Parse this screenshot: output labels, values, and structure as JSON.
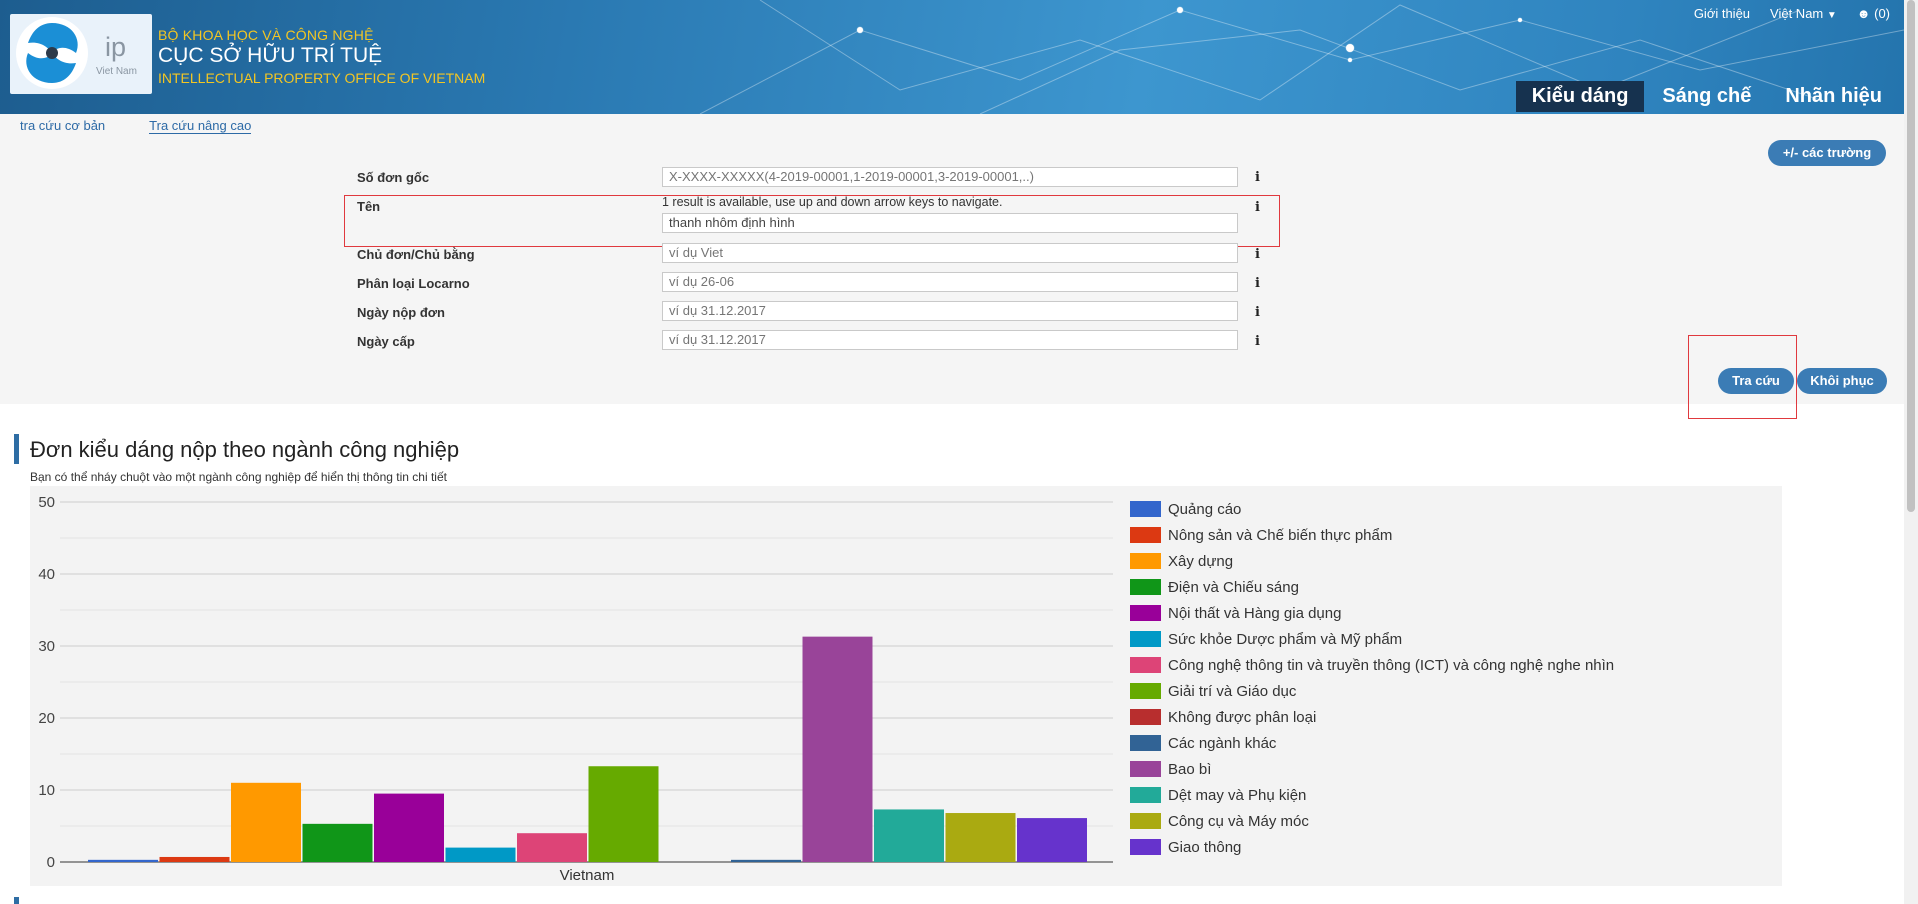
{
  "header": {
    "logo_text": "ip",
    "logo_sub": "Viet Nam",
    "org_line1": "BỘ KHOA HỌC VÀ CÔNG NGHỆ",
    "org_line2": "CỤC SỞ HỮU TRÍ TUỆ",
    "org_line3": "INTELLECTUAL PROPERTY OFFICE OF VIETNAM",
    "links": {
      "intro": "Giới thiệu",
      "language": "Việt Nam",
      "cart": "(0)"
    },
    "tabs": [
      {
        "label": "Kiểu dáng",
        "active": true
      },
      {
        "label": "Sáng chế",
        "active": false
      },
      {
        "label": "Nhãn hiệu",
        "active": false
      }
    ]
  },
  "search": {
    "subtabs": [
      "tra cứu cơ bản",
      "Tra cứu nâng cao"
    ],
    "fields_button": "+/- các trường",
    "hint": "1 result is available, use up and down arrow keys to navigate.",
    "fields": [
      {
        "label": "Số đơn gốc",
        "placeholder": "X-XXXX-XXXXX(4-2019-00001,1-2019-00001,3-2019-00001,..)",
        "value": ""
      },
      {
        "label": "Tên",
        "placeholder": "",
        "value": "thanh nhôm định hình"
      },
      {
        "label": "Chủ đơn/Chủ bằng",
        "placeholder": "ví dụ Viet",
        "value": ""
      },
      {
        "label": "Phân loại Locarno",
        "placeholder": "ví dụ 26-06",
        "value": ""
      },
      {
        "label": "Ngày nộp đơn",
        "placeholder": "ví dụ 31.12.2017",
        "value": ""
      },
      {
        "label": "Ngày cấp",
        "placeholder": "ví dụ 31.12.2017",
        "value": ""
      }
    ],
    "info_icon": "i",
    "search_button": "Tra cứu",
    "reset_button": "Khôi phục"
  },
  "section": {
    "title": "Đơn kiểu dáng nộp theo ngành công nghiệp",
    "subtitle": "Bạn có thể nháy chuột vào một ngành công nghiệp để hiển thị thông tin chi tiết"
  },
  "chart_data": {
    "type": "bar",
    "categories": [
      "Vietnam"
    ],
    "xlabel": "",
    "ylabel": "",
    "ylim": [
      0,
      50
    ],
    "y_ticks": [
      0,
      10,
      20,
      30,
      40,
      50
    ],
    "grid": true,
    "legend_position": "right",
    "groups": [
      {
        "label": "Vietnam",
        "series_indices": [
          0,
          1,
          2,
          3,
          4,
          5,
          6,
          7
        ]
      },
      {
        "label": "",
        "series_indices": [
          9,
          10,
          11,
          12,
          13
        ]
      }
    ],
    "series": [
      {
        "name": "Quảng cáo",
        "color": "#3366cc",
        "value": 0.3
      },
      {
        "name": "Nông sản và Chế biến thực phẩm",
        "color": "#dc3912",
        "value": 0.7
      },
      {
        "name": "Xây dựng",
        "color": "#ff9900",
        "value": 11
      },
      {
        "name": "Điện và Chiếu sáng",
        "color": "#109618",
        "value": 5.3
      },
      {
        "name": "Nội thất và Hàng gia dụng",
        "color": "#990099",
        "value": 9.5
      },
      {
        "name": "Sức khỏe Dược phẩm và Mỹ phẩm",
        "color": "#0099c6",
        "value": 2
      },
      {
        "name": "Công nghệ thông tin và truyền thông (ICT) và công nghệ nghe nhìn",
        "color": "#dd4477",
        "value": 4
      },
      {
        "name": "Giải trí và Giáo dục",
        "color": "#66aa00",
        "value": 13.3
      },
      {
        "name": "Không được phân loại",
        "color": "#b82e2e",
        "value": 0
      },
      {
        "name": "Các ngành khác",
        "color": "#316395",
        "value": 0.3
      },
      {
        "name": "Bao bì",
        "color": "#994499",
        "value": 31.3
      },
      {
        "name": "Dệt may và Phụ kiện",
        "color": "#22aa99",
        "value": 7.3
      },
      {
        "name": "Công cụ và Máy móc",
        "color": "#aaaa11",
        "value": 6.8
      },
      {
        "name": "Giao thông",
        "color": "#6633cc",
        "value": 6.1
      }
    ]
  }
}
